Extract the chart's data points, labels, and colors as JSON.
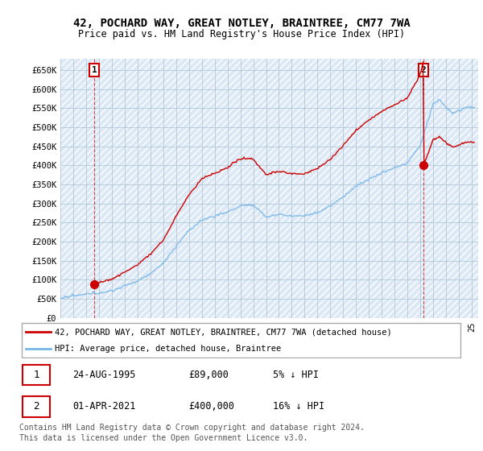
{
  "title": "42, POCHARD WAY, GREAT NOTLEY, BRAINTREE, CM77 7WA",
  "subtitle": "Price paid vs. HM Land Registry's House Price Index (HPI)",
  "ylim": [
    0,
    680000
  ],
  "yticks": [
    0,
    50000,
    100000,
    150000,
    200000,
    250000,
    300000,
    350000,
    400000,
    450000,
    500000,
    550000,
    600000,
    650000
  ],
  "line_color_hpi": "#7ab8e8",
  "line_color_price": "#cc0000",
  "background_color": "#ffffff",
  "plot_bg_color": "#dce8f5",
  "grid_color": "#b0c8d8",
  "sale1_year": 1995.64,
  "sale1_price": 89000,
  "sale2_year": 2021.25,
  "sale2_price": 400000,
  "legend_label1": "42, POCHARD WAY, GREAT NOTLEY, BRAINTREE, CM77 7WA (detached house)",
  "legend_label2": "HPI: Average price, detached house, Braintree",
  "footer1": "Contains HM Land Registry data © Crown copyright and database right 2024.",
  "footer2": "This data is licensed under the Open Government Licence v3.0.",
  "table_row1": [
    "1",
    "24-AUG-1995",
    "£89,000",
    "5% ↓ HPI"
  ],
  "table_row2": [
    "2",
    "01-APR-2021",
    "£400,000",
    "16% ↓ HPI"
  ],
  "xmin": 1993,
  "xmax": 2025.5
}
